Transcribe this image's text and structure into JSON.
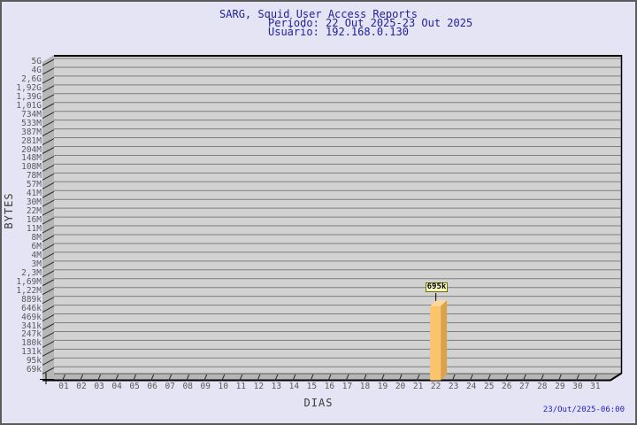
{
  "header": {
    "title": "SARG, Squid User Access Reports",
    "period": "Período: 22 Out 2025-23 Out 2025",
    "user": "Usuário: 192.168.0.130"
  },
  "footer": {
    "timestamp": "23/Out/2025-06:00"
  },
  "chart_data": {
    "type": "bar",
    "title": "SARG, Squid User Access Reports",
    "subtitle": "Período: 22 Out 2025-23 Out 2025 / Usuário: 192.168.0.130",
    "xlabel": "DIAS",
    "ylabel": "BYTES",
    "y_scale": "log",
    "y_top_value": 5000000000,
    "y_bottom_value": 69000,
    "y_tick_labels": [
      "5G",
      "4G",
      "2,6G",
      "1,92G",
      "1,39G",
      "1,01G",
      "734M",
      "533M",
      "387M",
      "281M",
      "204M",
      "148M",
      "108M",
      "78M",
      "57M",
      "41M",
      "30M",
      "22M",
      "16M",
      "11M",
      "8M",
      "6M",
      "4M",
      "3M",
      "2,3M",
      "1,69M",
      "1,22M",
      "889k",
      "646k",
      "469k",
      "341k",
      "247k",
      "180k",
      "131k",
      "95k",
      "69k"
    ],
    "x_tick_labels": [
      "01",
      "02",
      "03",
      "04",
      "05",
      "06",
      "07",
      "08",
      "09",
      "10",
      "11",
      "12",
      "13",
      "14",
      "15",
      "16",
      "17",
      "18",
      "19",
      "20",
      "21",
      "22",
      "23",
      "24",
      "25",
      "26",
      "27",
      "28",
      "29",
      "30",
      "31"
    ],
    "bars": [
      {
        "x": "22",
        "value": 695000,
        "label": "695k"
      }
    ],
    "legend": "none",
    "grid": "horizontal",
    "colors": {
      "page_bg": "#e4e4f4",
      "page_border": "#5c5c5c",
      "title_text": "#21219c",
      "timestamp_text": "#2121c8",
      "tick_text": "#5a5a5a",
      "axis_title_text": "#3a3a3a",
      "plot_bg": "#d2d2d2",
      "grid_line": "#7e7e7e",
      "wall": "#b6b6b6",
      "axis_line": "#000000",
      "bar_front": "#fdc46e",
      "bar_side": "#d9a24b",
      "bar_top": "#fed898",
      "value_box_bg": "#ffffc6",
      "value_box_border": "#6e6e00"
    }
  }
}
